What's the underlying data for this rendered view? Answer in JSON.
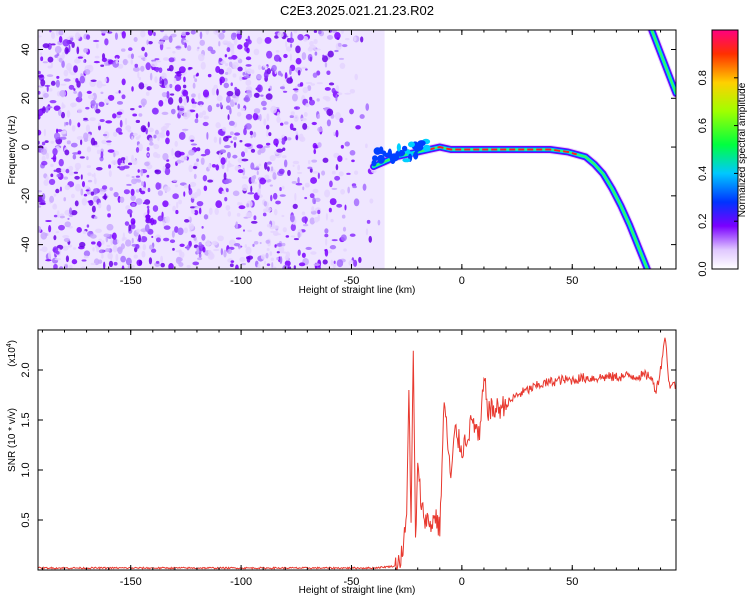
{
  "title": "C2E3.2025.021.21.23.R02",
  "chart_data": [
    {
      "type": "heatmap",
      "xlabel": "Height of straight line (km)",
      "ylabel": "Frequency (Hz)",
      "xlim": [
        -192,
        97
      ],
      "ylim": [
        -50,
        48
      ],
      "xticks": [
        -150,
        -100,
        -50,
        0,
        50
      ],
      "yticks": [
        -40,
        -20,
        0,
        20,
        40
      ],
      "colorbar": {
        "label": "Normalized spectral amplitude",
        "range": [
          0,
          1
        ],
        "ticks": [
          0.0,
          0.2,
          0.4,
          0.6,
          0.8
        ]
      },
      "noise_region_x": [
        -192,
        -35
      ],
      "trace": {
        "x": [
          -40,
          -35,
          -30,
          -25,
          -20,
          -15,
          -10,
          -5,
          0,
          10,
          20,
          30,
          40,
          48,
          52,
          56,
          60,
          64,
          68,
          72,
          76,
          80,
          84
        ],
        "y": [
          -8,
          -6,
          -4,
          -3,
          -2,
          -1,
          0,
          -1,
          -1,
          -1,
          -1,
          -1,
          -1,
          -2,
          -3,
          -4,
          -7,
          -11,
          -17,
          -24,
          -32,
          -41,
          -50
        ]
      },
      "trace2": {
        "x": [
          86,
          97
        ],
        "y": [
          48,
          22
        ]
      }
    },
    {
      "type": "line",
      "xlabel": "Height of straight line (km)",
      "ylabel": "SNR (10 * v/v)",
      "scale_label": "(x10^4)",
      "xlim": [
        -192,
        97
      ],
      "ylim": [
        0,
        2.4
      ],
      "xticks": [
        -150,
        -100,
        -50,
        0,
        50
      ],
      "yticks": [
        0.5,
        1.0,
        1.5,
        2.0
      ],
      "series": [
        {
          "color": "#e8392f",
          "x": [
            -192,
            -100,
            -40,
            -30,
            -27,
            -25,
            -24,
            -23,
            -22,
            -21,
            -20,
            -18,
            -16,
            -14,
            -12,
            -10,
            -8,
            -5,
            -3,
            0,
            5,
            8,
            10,
            12,
            15,
            20,
            25,
            30,
            35,
            40,
            45,
            50,
            55,
            60,
            65,
            70,
            75,
            80,
            85,
            88,
            90,
            92,
            94,
            97
          ],
          "y": [
            0.02,
            0.02,
            0.02,
            0.04,
            0.15,
            0.5,
            1.9,
            0.4,
            2.2,
            0.3,
            1.0,
            0.6,
            0.5,
            0.45,
            0.55,
            0.4,
            1.7,
            0.9,
            1.4,
            1.2,
            1.5,
            1.3,
            1.9,
            1.6,
            1.6,
            1.65,
            1.75,
            1.8,
            1.85,
            1.88,
            1.9,
            1.9,
            1.92,
            1.92,
            1.93,
            1.93,
            1.94,
            1.94,
            1.95,
            1.8,
            2.0,
            2.35,
            1.85,
            1.85
          ]
        }
      ]
    }
  ]
}
